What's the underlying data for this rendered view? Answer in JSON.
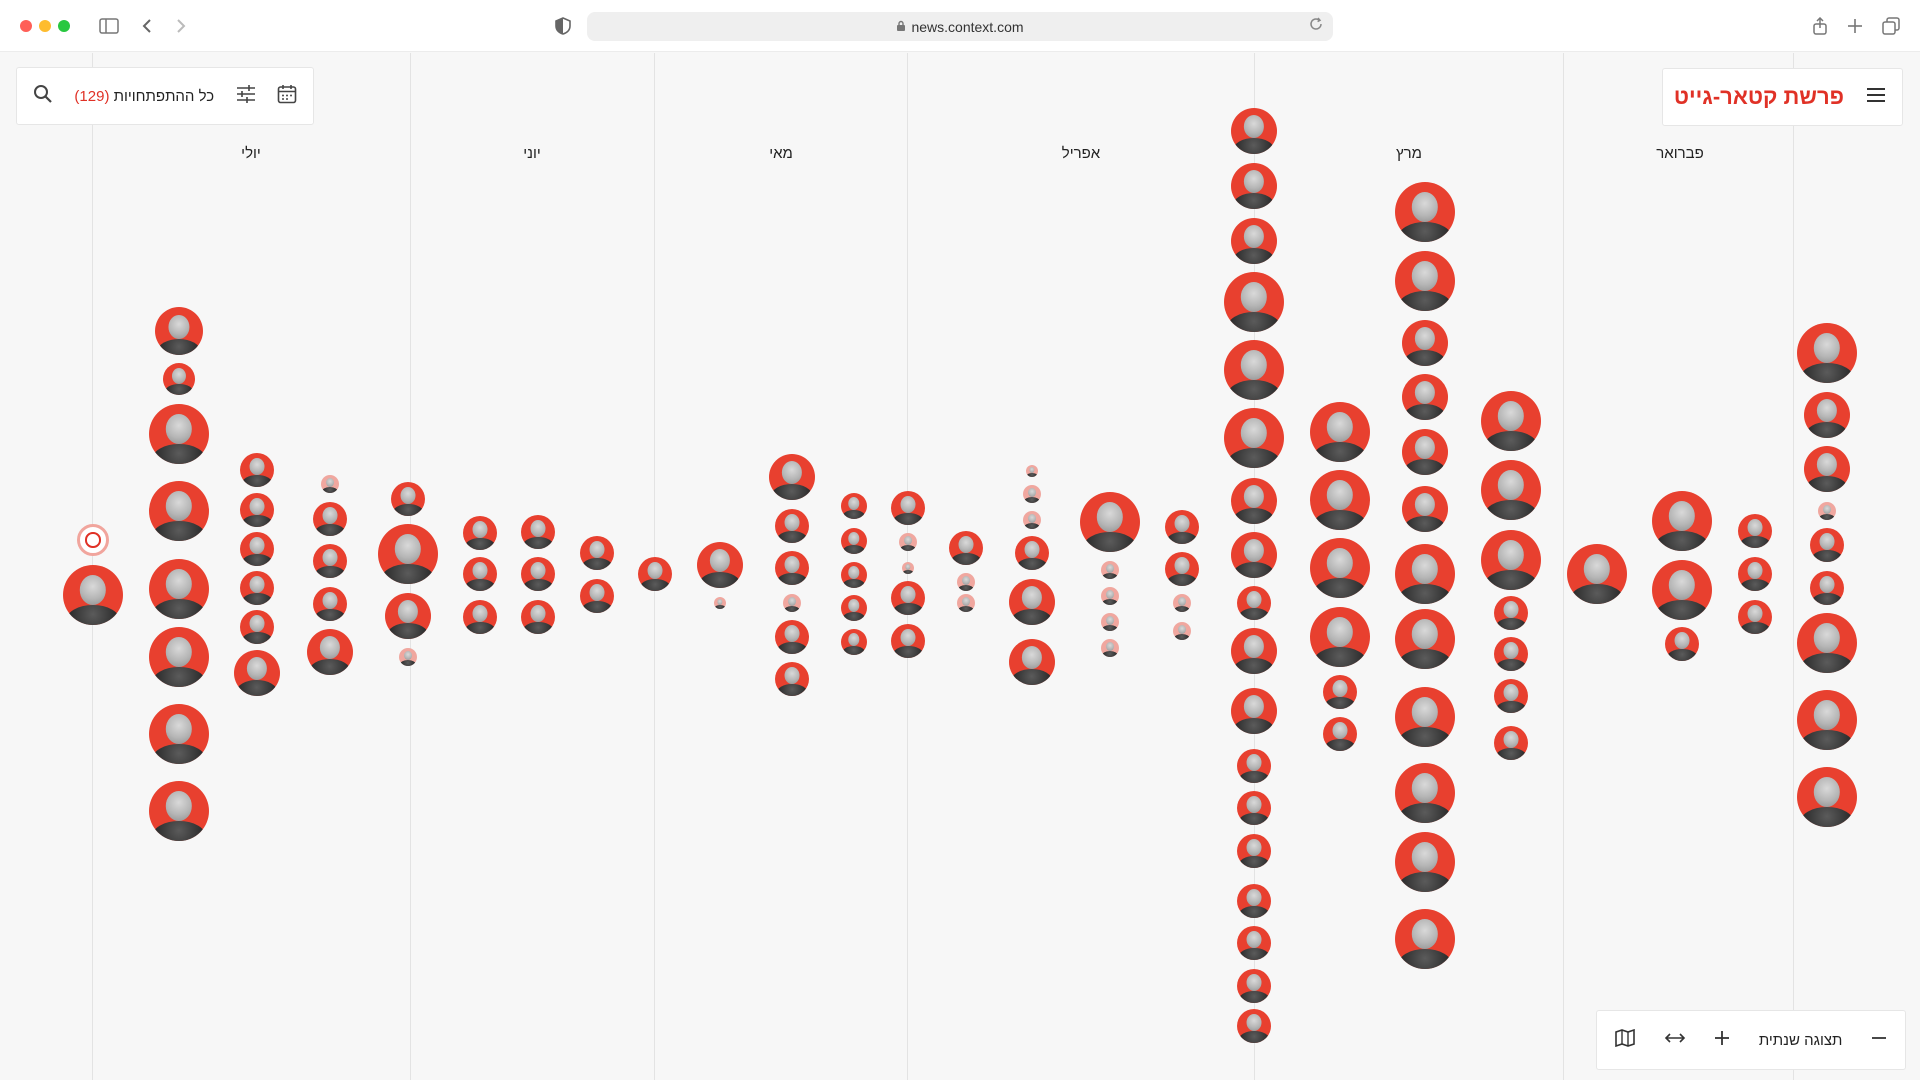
{
  "browser": {
    "url": "news.context.com"
  },
  "header": {
    "title": "פרשת קטאר-גייט",
    "menu_icon": "hamburger-icon"
  },
  "filter": {
    "label": "כל ההתפתחויות",
    "count": "(129)",
    "icons": [
      "search-icon",
      "sliders-icon",
      "calendar-icon"
    ]
  },
  "timeline": {
    "months": [
      "פברואר",
      "מרץ",
      "אפריל",
      "מאי",
      "יוני",
      "יולי"
    ]
  },
  "zoom_controls": {
    "label": "תצוגה שנתית",
    "icons": [
      "minus-icon",
      "plus-icon",
      "expand-horizontal-icon",
      "map-icon"
    ]
  },
  "colors": {
    "accent": "#e03126",
    "avatar_bg": "#e8402f",
    "avatar_bg_small": "#f0a79f",
    "background": "#f7f7f7"
  }
}
